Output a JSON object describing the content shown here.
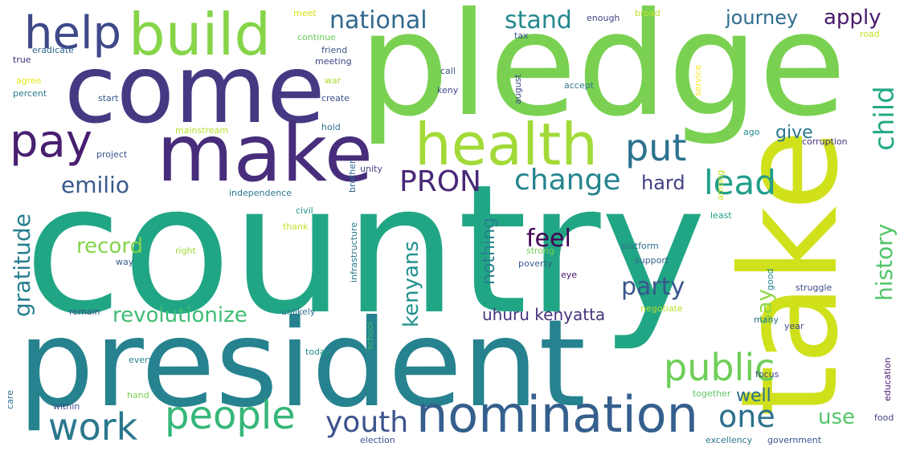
{
  "words": [
    {
      "text": "country",
      "color": "#21a685"
    },
    {
      "text": "pledge",
      "color": "#7ad151"
    },
    {
      "text": "president",
      "color": "#26828e"
    },
    {
      "text": "take",
      "color": "#d0e11c"
    },
    {
      "text": "come",
      "color": "#443983"
    },
    {
      "text": "make",
      "color": "#472d7b"
    },
    {
      "text": "health",
      "color": "#a2da37"
    },
    {
      "text": "build",
      "color": "#86d549"
    },
    {
      "text": "nomination",
      "color": "#355f8d"
    },
    {
      "text": "help",
      "color": "#3e4989"
    },
    {
      "text": "pay",
      "color": "#481f70"
    },
    {
      "text": "people",
      "color": "#35b779"
    },
    {
      "text": "public",
      "color": "#6ece58"
    },
    {
      "text": "work",
      "color": "#2a788e"
    },
    {
      "text": "put",
      "color": "#2c728e"
    },
    {
      "text": "lead",
      "color": "#1f9e89"
    },
    {
      "text": "PRON",
      "color": "#482878"
    },
    {
      "text": "change",
      "color": "#25848e"
    },
    {
      "text": "youth",
      "color": "#3b528b"
    },
    {
      "text": "one",
      "color": "#2d708e"
    },
    {
      "text": "national",
      "color": "#31688e"
    },
    {
      "text": "stand",
      "color": "#23898e"
    },
    {
      "text": "emilio",
      "color": "#38598c"
    },
    {
      "text": "child",
      "color": "#22a884"
    },
    {
      "text": "feel",
      "color": "#440154"
    },
    {
      "text": "party",
      "color": "#39568c"
    },
    {
      "text": "revolutionize",
      "color": "#3dbc74"
    },
    {
      "text": "gratitude",
      "color": "#277f8e"
    },
    {
      "text": "record",
      "color": "#84d44b"
    },
    {
      "text": "history",
      "color": "#52c569"
    },
    {
      "text": "journey",
      "color": "#2f6c8e"
    },
    {
      "text": "apply",
      "color": "#481a6c"
    },
    {
      "text": "say",
      "color": "#8fd744"
    },
    {
      "text": "use",
      "color": "#54c568"
    },
    {
      "text": "kenyans",
      "color": "#21918c"
    },
    {
      "text": "hard",
      "color": "#424086"
    },
    {
      "text": "give",
      "color": "#2a788e"
    },
    {
      "text": "well",
      "color": "#2e6e8e"
    },
    {
      "text": "nothing",
      "color": "#26818e"
    },
    {
      "text": "uhuru kenyatta",
      "color": "#46337e"
    },
    {
      "text": "meet",
      "color": "#d8e219"
    },
    {
      "text": "enough",
      "color": "#414487"
    },
    {
      "text": "broad",
      "color": "#bddf26"
    },
    {
      "text": "continue",
      "color": "#6ccd5a"
    },
    {
      "text": "eradicate",
      "color": "#31688e"
    },
    {
      "text": "friend",
      "color": "#3a538b"
    },
    {
      "text": "tax",
      "color": "#3b518b"
    },
    {
      "text": "road",
      "color": "#c8e020"
    },
    {
      "text": "true",
      "color": "#46307e"
    },
    {
      "text": "meeting",
      "color": "#404588"
    },
    {
      "text": "call",
      "color": "#3b528b"
    },
    {
      "text": "agree",
      "color": "#e2e418"
    },
    {
      "text": "war",
      "color": "#a8db34"
    },
    {
      "text": "keny",
      "color": "#3f4788"
    },
    {
      "text": "august",
      "color": "#3e4989"
    },
    {
      "text": "percent",
      "color": "#2a788e"
    },
    {
      "text": "start",
      "color": "#375a8c"
    },
    {
      "text": "create",
      "color": "#3b528b"
    },
    {
      "text": "accept",
      "color": "#2a788e"
    },
    {
      "text": "service",
      "color": "#fde725"
    },
    {
      "text": "mainstream",
      "color": "#b5de2b"
    },
    {
      "text": "hold",
      "color": "#2c738e"
    },
    {
      "text": "ago",
      "color": "#238a8d"
    },
    {
      "text": "corruption",
      "color": "#46327e"
    },
    {
      "text": "project",
      "color": "#3b528b"
    },
    {
      "text": "unity",
      "color": "#414487"
    },
    {
      "text": "among",
      "color": "#c5e021"
    },
    {
      "text": "independence",
      "color": "#2a788e"
    },
    {
      "text": "brother",
      "color": "#31688e"
    },
    {
      "text": "civil",
      "color": "#1f958b"
    },
    {
      "text": "infrastructure",
      "color": "#29798e"
    },
    {
      "text": "least",
      "color": "#1fa088"
    },
    {
      "text": "thank",
      "color": "#c2df23"
    },
    {
      "text": "right",
      "color": "#a0da39"
    },
    {
      "text": "platform",
      "color": "#2c718e"
    },
    {
      "text": "strong",
      "color": "#75d054"
    },
    {
      "text": "support",
      "color": "#34618d"
    },
    {
      "text": "way",
      "color": "#38598c"
    },
    {
      "text": "poverty",
      "color": "#365d8d"
    },
    {
      "text": "good",
      "color": "#24868e"
    },
    {
      "text": "eye",
      "color": "#471063"
    },
    {
      "text": "struggle",
      "color": "#3f4889"
    },
    {
      "text": "remain",
      "color": "#3e4a89"
    },
    {
      "text": "unlikely",
      "color": "#2e6e8e"
    },
    {
      "text": "negotiate",
      "color": "#b8de29"
    },
    {
      "text": "many",
      "color": "#2d718e"
    },
    {
      "text": "year",
      "color": "#3e4c8a"
    },
    {
      "text": "school",
      "color": "#3aba76"
    },
    {
      "text": "today",
      "color": "#20928c"
    },
    {
      "text": "every",
      "color": "#25838e"
    },
    {
      "text": "focus",
      "color": "#3f4788"
    },
    {
      "text": "education",
      "color": "#481467"
    },
    {
      "text": "care",
      "color": "#2e6f8e"
    },
    {
      "text": "hand",
      "color": "#7ad151"
    },
    {
      "text": "within",
      "color": "#3b528b"
    },
    {
      "text": "together",
      "color": "#5ec962"
    },
    {
      "text": "food",
      "color": "#414487"
    },
    {
      "text": "election",
      "color": "#3b518b"
    },
    {
      "text": "excellency",
      "color": "#2b758e"
    },
    {
      "text": "government",
      "color": "#3a548c"
    }
  ]
}
